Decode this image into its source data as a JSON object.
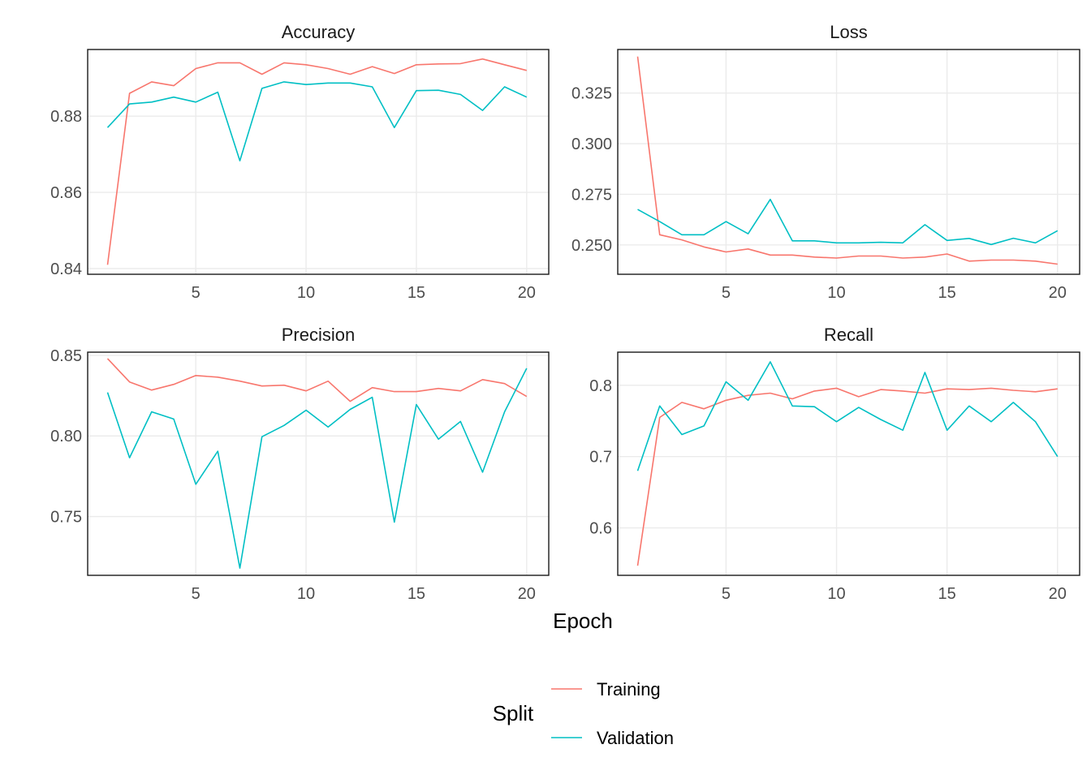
{
  "figure": {
    "xlabel": "Epoch",
    "legend": {
      "title": "Split",
      "placement": "bottom",
      "items": [
        {
          "label": "Training",
          "color": "#F8766D"
        },
        {
          "label": "Validation",
          "color": "#00BFC4"
        }
      ]
    }
  },
  "chart_data": [
    {
      "type": "line",
      "title": "Accuracy",
      "x": [
        1,
        2,
        3,
        4,
        5,
        6,
        7,
        8,
        9,
        10,
        11,
        12,
        13,
        14,
        15,
        16,
        17,
        18,
        19,
        20
      ],
      "xticks": [
        5,
        10,
        15,
        20
      ],
      "xlim": [
        0.1,
        21.0
      ],
      "ylim": [
        0.8385,
        0.8975
      ],
      "yticks": [
        0.84,
        0.86,
        0.88
      ],
      "ytick_labels": [
        "0.84",
        "0.86",
        "0.88"
      ],
      "grid": true,
      "series": [
        {
          "name": "Training",
          "color": "#F8766D",
          "values": [
            0.841,
            0.886,
            0.889,
            0.888,
            0.8925,
            0.894,
            0.894,
            0.891,
            0.894,
            0.8935,
            0.8925,
            0.891,
            0.893,
            0.8912,
            0.8935,
            0.8937,
            0.8938,
            0.895,
            0.8935,
            0.892
          ]
        },
        {
          "name": "Validation",
          "color": "#00BFC4",
          "values": [
            0.877,
            0.8832,
            0.8837,
            0.885,
            0.8837,
            0.8863,
            0.8683,
            0.8873,
            0.889,
            0.8883,
            0.8887,
            0.8887,
            0.8877,
            0.877,
            0.8867,
            0.8868,
            0.8857,
            0.8815,
            0.8877,
            0.885
          ]
        }
      ]
    },
    {
      "type": "line",
      "title": "Loss",
      "x": [
        1,
        2,
        3,
        4,
        5,
        6,
        7,
        8,
        9,
        10,
        11,
        12,
        13,
        14,
        15,
        16,
        17,
        18,
        19,
        20
      ],
      "xticks": [
        5,
        10,
        15,
        20
      ],
      "xlim": [
        0.1,
        21.0
      ],
      "ylim": [
        0.2355,
        0.3465
      ],
      "yticks": [
        0.25,
        0.275,
        0.3,
        0.325
      ],
      "ytick_labels": [
        "0.250",
        "0.275",
        "0.300",
        "0.325"
      ],
      "grid": true,
      "series": [
        {
          "name": "Training",
          "color": "#F8766D",
          "values": [
            0.343,
            0.255,
            0.2525,
            0.249,
            0.2465,
            0.248,
            0.245,
            0.245,
            0.244,
            0.2435,
            0.2445,
            0.2445,
            0.2435,
            0.244,
            0.2455,
            0.242,
            0.2425,
            0.2425,
            0.242,
            0.2405
          ]
        },
        {
          "name": "Validation",
          "color": "#00BFC4",
          "values": [
            0.2675,
            0.2615,
            0.255,
            0.255,
            0.2615,
            0.2555,
            0.2725,
            0.252,
            0.252,
            0.251,
            0.251,
            0.2513,
            0.251,
            0.26,
            0.2522,
            0.2532,
            0.2502,
            0.2533,
            0.251,
            0.257
          ]
        }
      ]
    },
    {
      "type": "line",
      "title": "Precision",
      "x": [
        1,
        2,
        3,
        4,
        5,
        6,
        7,
        8,
        9,
        10,
        11,
        12,
        13,
        14,
        15,
        16,
        17,
        18,
        19,
        20
      ],
      "xticks": [
        5,
        10,
        15,
        20
      ],
      "xlim": [
        0.1,
        21.0
      ],
      "ylim": [
        0.7135,
        0.852
      ],
      "yticks": [
        0.75,
        0.8,
        0.85
      ],
      "ytick_labels": [
        "0.75",
        "0.80",
        "0.85"
      ],
      "grid": true,
      "series": [
        {
          "name": "Training",
          "color": "#F8766D",
          "values": [
            0.848,
            0.8335,
            0.8285,
            0.832,
            0.8375,
            0.8365,
            0.834,
            0.831,
            0.8315,
            0.828,
            0.834,
            0.8215,
            0.83,
            0.8275,
            0.8275,
            0.8295,
            0.828,
            0.835,
            0.8325,
            0.8245
          ]
        },
        {
          "name": "Validation",
          "color": "#00BFC4",
          "values": [
            0.827,
            0.7865,
            0.815,
            0.8105,
            0.77,
            0.7905,
            0.718,
            0.7995,
            0.8065,
            0.816,
            0.8055,
            0.8165,
            0.824,
            0.7465,
            0.8195,
            0.798,
            0.809,
            0.7775,
            0.815,
            0.842
          ]
        }
      ]
    },
    {
      "type": "line",
      "title": "Recall",
      "x": [
        1,
        2,
        3,
        4,
        5,
        6,
        7,
        8,
        9,
        10,
        11,
        12,
        13,
        14,
        15,
        16,
        17,
        18,
        19,
        20
      ],
      "xticks": [
        5,
        10,
        15,
        20
      ],
      "xlim": [
        0.1,
        21.0
      ],
      "ylim": [
        0.5335,
        0.8465
      ],
      "yticks": [
        0.6,
        0.7,
        0.8
      ],
      "ytick_labels": [
        "0.6",
        "0.7",
        "0.8"
      ],
      "grid": true,
      "series": [
        {
          "name": "Training",
          "color": "#F8766D",
          "values": [
            0.547,
            0.755,
            0.776,
            0.767,
            0.779,
            0.786,
            0.789,
            0.781,
            0.792,
            0.796,
            0.784,
            0.794,
            0.792,
            0.789,
            0.795,
            0.794,
            0.796,
            0.793,
            0.791,
            0.795
          ]
        },
        {
          "name": "Validation",
          "color": "#00BFC4",
          "values": [
            0.68,
            0.771,
            0.731,
            0.743,
            0.805,
            0.779,
            0.833,
            0.771,
            0.77,
            0.749,
            0.769,
            0.752,
            0.737,
            0.818,
            0.737,
            0.771,
            0.749,
            0.776,
            0.749,
            0.7
          ]
        }
      ]
    }
  ]
}
